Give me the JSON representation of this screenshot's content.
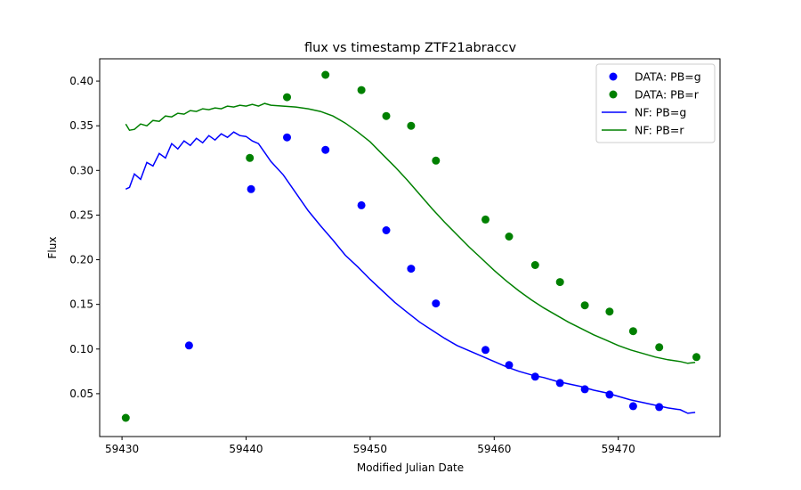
{
  "chart_data": {
    "type": "scatter",
    "title": "flux vs timestamp ZTF21abraccv",
    "xlabel": "Modified Julian Date",
    "ylabel": "Flux",
    "xlim": [
      59428.2,
      59478.2
    ],
    "ylim": [
      0.002,
      0.425
    ],
    "xticks": [
      59430,
      59440,
      59450,
      59460,
      59470
    ],
    "yticks": [
      0.05,
      0.1,
      0.15,
      0.2,
      0.25,
      0.3,
      0.35,
      0.4
    ],
    "ytick_labels": [
      "0.05",
      "0.10",
      "0.15",
      "0.20",
      "0.25",
      "0.30",
      "0.35",
      "0.40"
    ],
    "legend_position": "top-right",
    "grid": false,
    "series": [
      {
        "name": "DATA: PB=g",
        "kind": "scatter",
        "color": "#0000ff",
        "x": [
          59435.4,
          59440.4,
          59443.3,
          59446.4,
          59449.3,
          59451.3,
          59453.3,
          59455.3,
          59459.3,
          59461.2,
          59463.3,
          59465.3,
          59467.3,
          59469.3,
          59471.2,
          59473.3
        ],
        "y": [
          0.104,
          0.279,
          0.337,
          0.323,
          0.261,
          0.233,
          0.19,
          0.151,
          0.099,
          0.082,
          0.069,
          0.062,
          0.055,
          0.049,
          0.036,
          0.035
        ]
      },
      {
        "name": "DATA: PB=r",
        "kind": "scatter",
        "color": "#008000",
        "x": [
          59430.3,
          59440.3,
          59443.3,
          59446.4,
          59449.3,
          59451.3,
          59453.3,
          59455.3,
          59459.3,
          59461.2,
          59463.3,
          59465.3,
          59467.3,
          59469.3,
          59471.2,
          59473.3,
          59476.3
        ],
        "y": [
          0.023,
          0.314,
          0.382,
          0.407,
          0.39,
          0.361,
          0.35,
          0.311,
          0.245,
          0.226,
          0.194,
          0.175,
          0.149,
          0.142,
          0.12,
          0.102,
          0.091
        ]
      },
      {
        "name": "NF: PB=g",
        "kind": "line",
        "color": "#0000ff",
        "x": [
          59430.3,
          59430.6,
          59431.0,
          59431.5,
          59432.0,
          59432.5,
          59433.0,
          59433.5,
          59434.0,
          59434.5,
          59435.0,
          59435.5,
          59436.0,
          59436.5,
          59437.0,
          59437.5,
          59438.0,
          59438.5,
          59439.0,
          59439.5,
          59440.0,
          59440.5,
          59441.0,
          59441.5,
          59442.0,
          59443.0,
          59444.0,
          59445.0,
          59446.0,
          59447.0,
          59448.0,
          59449.0,
          59450.0,
          59451.0,
          59452.0,
          59453.0,
          59454.0,
          59455.0,
          59456.0,
          59457.0,
          59458.0,
          59459.0,
          59460.0,
          59461.0,
          59462.0,
          59463.0,
          59464.0,
          59465.0,
          59466.0,
          59467.0,
          59468.0,
          59469.0,
          59470.0,
          59471.0,
          59472.0,
          59473.0,
          59474.0,
          59475.0,
          59475.6,
          59476.2
        ],
        "y": [
          0.279,
          0.281,
          0.296,
          0.29,
          0.309,
          0.305,
          0.319,
          0.314,
          0.33,
          0.324,
          0.333,
          0.328,
          0.336,
          0.331,
          0.339,
          0.334,
          0.341,
          0.337,
          0.343,
          0.339,
          0.338,
          0.333,
          0.33,
          0.32,
          0.31,
          0.295,
          0.275,
          0.255,
          0.238,
          0.222,
          0.205,
          0.192,
          0.178,
          0.165,
          0.152,
          0.141,
          0.13,
          0.121,
          0.112,
          0.104,
          0.098,
          0.092,
          0.086,
          0.08,
          0.075,
          0.071,
          0.068,
          0.064,
          0.061,
          0.058,
          0.054,
          0.051,
          0.047,
          0.043,
          0.04,
          0.037,
          0.034,
          0.032,
          0.028,
          0.029
        ]
      },
      {
        "name": "NF: PB=r",
        "kind": "line",
        "color": "#008000",
        "x": [
          59430.3,
          59430.6,
          59431.0,
          59431.5,
          59432.0,
          59432.5,
          59433.0,
          59433.5,
          59434.0,
          59434.5,
          59435.0,
          59435.5,
          59436.0,
          59436.5,
          59437.0,
          59437.5,
          59438.0,
          59438.5,
          59439.0,
          59439.5,
          59440.0,
          59440.5,
          59441.0,
          59441.5,
          59442.0,
          59443.0,
          59444.0,
          59445.0,
          59446.0,
          59447.0,
          59448.0,
          59449.0,
          59450.0,
          59451.0,
          59452.0,
          59453.0,
          59454.0,
          59455.0,
          59456.0,
          59457.0,
          59458.0,
          59459.0,
          59460.0,
          59461.0,
          59462.0,
          59463.0,
          59464.0,
          59465.0,
          59466.0,
          59467.0,
          59468.0,
          59469.0,
          59470.0,
          59471.0,
          59472.0,
          59473.0,
          59474.0,
          59475.0,
          59475.6,
          59476.2
        ],
        "y": [
          0.352,
          0.345,
          0.346,
          0.352,
          0.35,
          0.356,
          0.355,
          0.361,
          0.36,
          0.364,
          0.363,
          0.367,
          0.366,
          0.369,
          0.368,
          0.37,
          0.369,
          0.372,
          0.371,
          0.373,
          0.372,
          0.374,
          0.372,
          0.375,
          0.373,
          0.372,
          0.371,
          0.369,
          0.366,
          0.361,
          0.353,
          0.343,
          0.332,
          0.318,
          0.304,
          0.289,
          0.273,
          0.257,
          0.242,
          0.228,
          0.214,
          0.201,
          0.188,
          0.176,
          0.165,
          0.155,
          0.146,
          0.138,
          0.13,
          0.123,
          0.116,
          0.11,
          0.104,
          0.099,
          0.095,
          0.091,
          0.088,
          0.086,
          0.084,
          0.085
        ]
      }
    ]
  }
}
